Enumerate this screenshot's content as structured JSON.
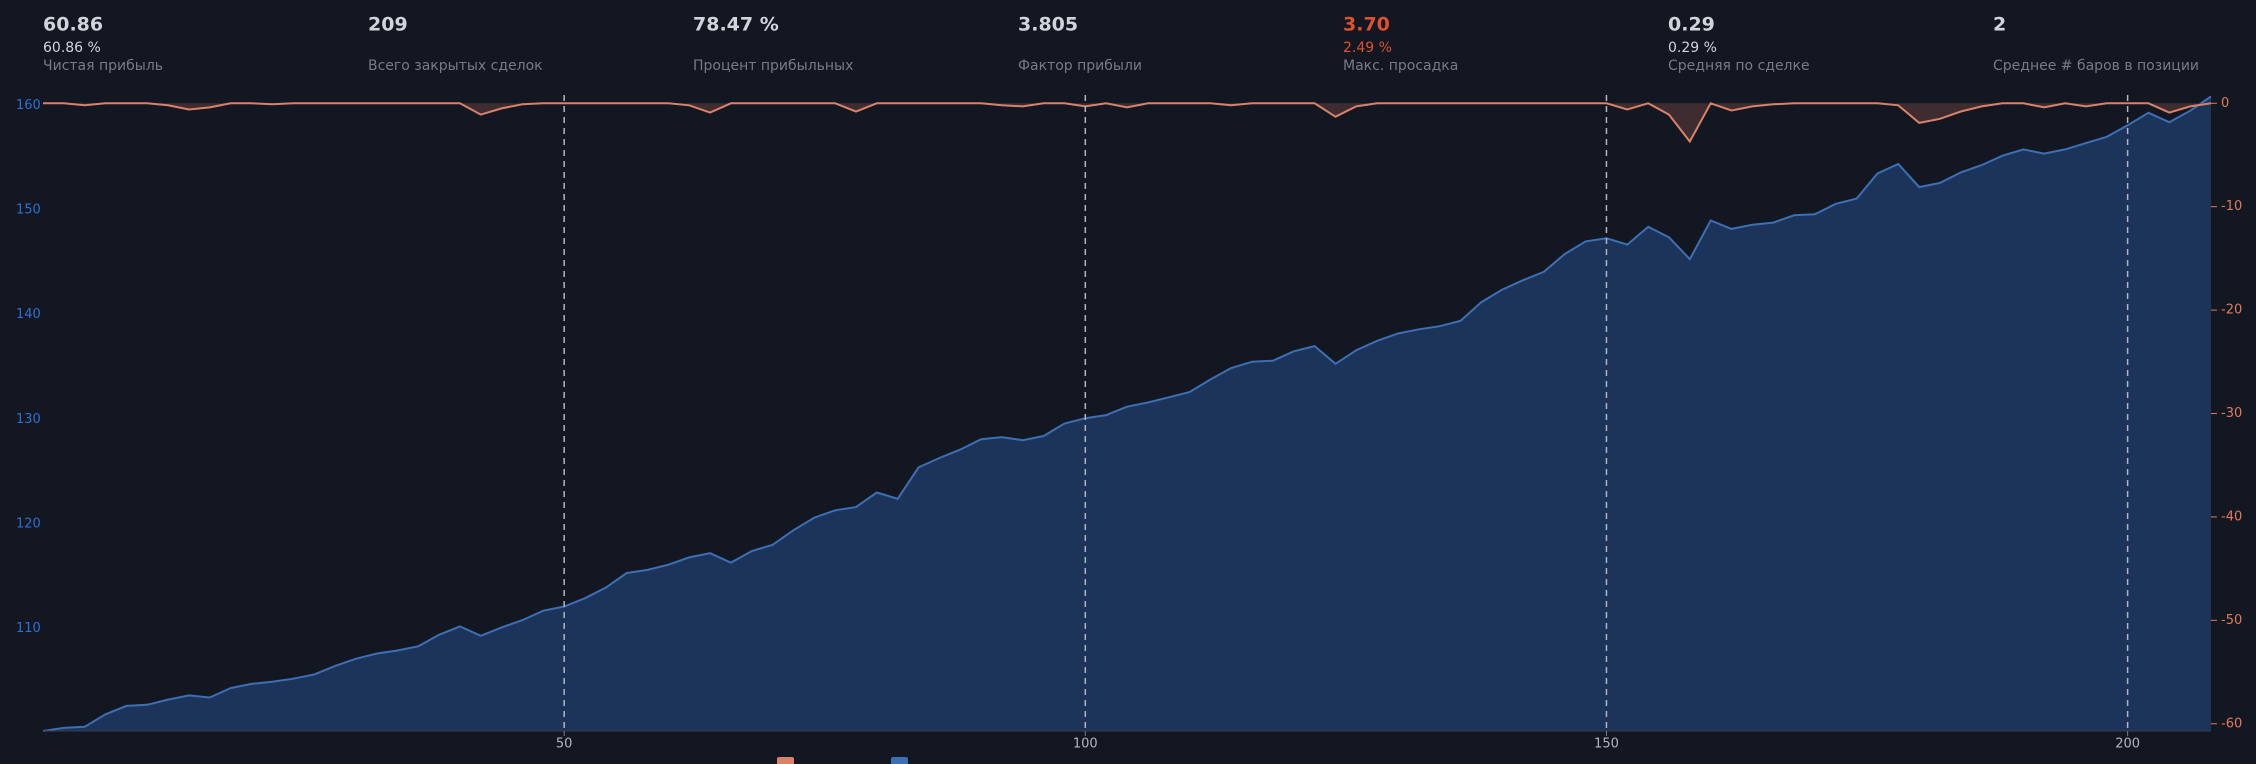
{
  "stats": [
    {
      "value": "60.86",
      "sub": "60.86 %",
      "label": "Чистая прибыль"
    },
    {
      "value": "209",
      "label": "Всего закрытых сделок"
    },
    {
      "value": "78.47 %",
      "label": "Процент прибыльных"
    },
    {
      "value": "3.805",
      "label": "Фактор прибыли"
    },
    {
      "value": "3.70",
      "sub": "2.49 %",
      "label": "Макс. просадка",
      "color": "#e0502f"
    },
    {
      "value": "0.29",
      "sub": "0.29 %",
      "label": "Средняя по сделке"
    },
    {
      "value": "2",
      "label": "Среднее # баров в позиции"
    }
  ],
  "chart_data": {
    "type": "area",
    "x": [
      0,
      2,
      4,
      6,
      8,
      10,
      12,
      14,
      16,
      18,
      20,
      22,
      24,
      26,
      28,
      30,
      32,
      34,
      36,
      38,
      40,
      42,
      44,
      46,
      48,
      50,
      52,
      54,
      56,
      58,
      60,
      62,
      64,
      66,
      68,
      70,
      72,
      74,
      76,
      78,
      80,
      82,
      84,
      86,
      88,
      90,
      92,
      94,
      96,
      98,
      100,
      102,
      104,
      106,
      108,
      110,
      112,
      114,
      116,
      118,
      120,
      122,
      124,
      126,
      128,
      130,
      132,
      134,
      136,
      138,
      140,
      142,
      144,
      146,
      148,
      150,
      152,
      154,
      156,
      158,
      160,
      162,
      164,
      166,
      168,
      170,
      172,
      174,
      176,
      178,
      180,
      182,
      184,
      186,
      188,
      190,
      192,
      194,
      196,
      198,
      200,
      202,
      204,
      206,
      208
    ],
    "series": [
      {
        "color": "#3d6fb5",
        "fill": "#1c3459",
        "values": [
          100.2,
          100.5,
          100.6,
          101.8,
          102.6,
          102.7,
          103.2,
          103.6,
          103.4,
          104.3,
          104.7,
          104.9,
          105.2,
          105.6,
          106.4,
          107.1,
          107.6,
          107.9,
          108.3,
          109.4,
          110.2,
          109.3,
          110.1,
          110.8,
          111.7,
          112.1,
          112.9,
          113.9,
          115.3,
          115.6,
          116.1,
          116.8,
          117.2,
          116.3,
          117.4,
          118.0,
          119.4,
          120.6,
          121.3,
          121.6,
          123.0,
          122.4,
          125.4,
          126.3,
          127.1,
          128.1,
          128.3,
          128.0,
          128.4,
          129.6,
          130.1,
          130.4,
          131.2,
          131.6,
          132.1,
          132.6,
          133.8,
          134.9,
          135.5,
          135.6,
          136.5,
          137.0,
          135.3,
          136.6,
          137.5,
          138.2,
          138.6,
          138.9,
          139.4,
          141.2,
          142.4,
          143.3,
          144.1,
          145.8,
          147.0,
          147.3,
          146.7,
          148.4,
          147.4,
          145.3,
          149.0,
          148.2,
          148.6,
          148.8,
          149.5,
          149.6,
          150.6,
          151.1,
          153.5,
          154.4,
          152.2,
          152.6,
          153.6,
          154.3,
          155.2,
          155.8,
          155.4,
          155.8,
          156.4,
          157.0,
          158.1,
          159.3,
          158.4,
          159.5,
          160.86
        ]
      },
      {
        "color": "#d9826a",
        "fill": "#4a3234",
        "axis": "y2",
        "values": [
          0,
          0,
          -0.2,
          0,
          0,
          0,
          -0.2,
          -0.6,
          -0.4,
          0,
          0,
          -0.1,
          0,
          0,
          0,
          0,
          0,
          0,
          0,
          0,
          0,
          -1.1,
          -0.5,
          -0.1,
          0,
          0,
          0,
          0,
          0,
          0,
          0,
          -0.2,
          -0.9,
          0,
          0,
          0,
          0,
          0,
          0,
          -0.8,
          0,
          0,
          0,
          0,
          0,
          0,
          -0.2,
          -0.3,
          0,
          0,
          -0.3,
          0,
          -0.4,
          0,
          0,
          0,
          0,
          -0.2,
          0,
          0,
          0,
          0,
          -1.3,
          -0.3,
          0,
          0,
          0,
          0,
          0,
          0,
          0,
          0,
          0,
          0,
          0,
          0,
          -0.6,
          0,
          -1.1,
          -3.7,
          0,
          -0.7,
          -0.3,
          -0.1,
          0,
          0,
          0,
          0,
          0,
          -0.2,
          -1.9,
          -1.5,
          -0.8,
          -0.3,
          0,
          0,
          -0.4,
          0,
          -0.3,
          0,
          0,
          0,
          -0.9,
          -0.3,
          0
        ]
      }
    ],
    "xlim": [
      0,
      208
    ],
    "xticks": [
      50,
      100,
      150,
      200
    ],
    "ylim": [
      100.2,
      161
    ],
    "yticks": [
      110,
      120,
      130,
      140,
      150,
      160
    ],
    "y2lim": [
      -60.7,
      0.8
    ],
    "y2ticks": [
      0,
      -10,
      -20,
      -30,
      -40,
      -50,
      -60
    ],
    "ytick_color": "#2f6fd0",
    "y2tick_color": "#e07a5f"
  }
}
